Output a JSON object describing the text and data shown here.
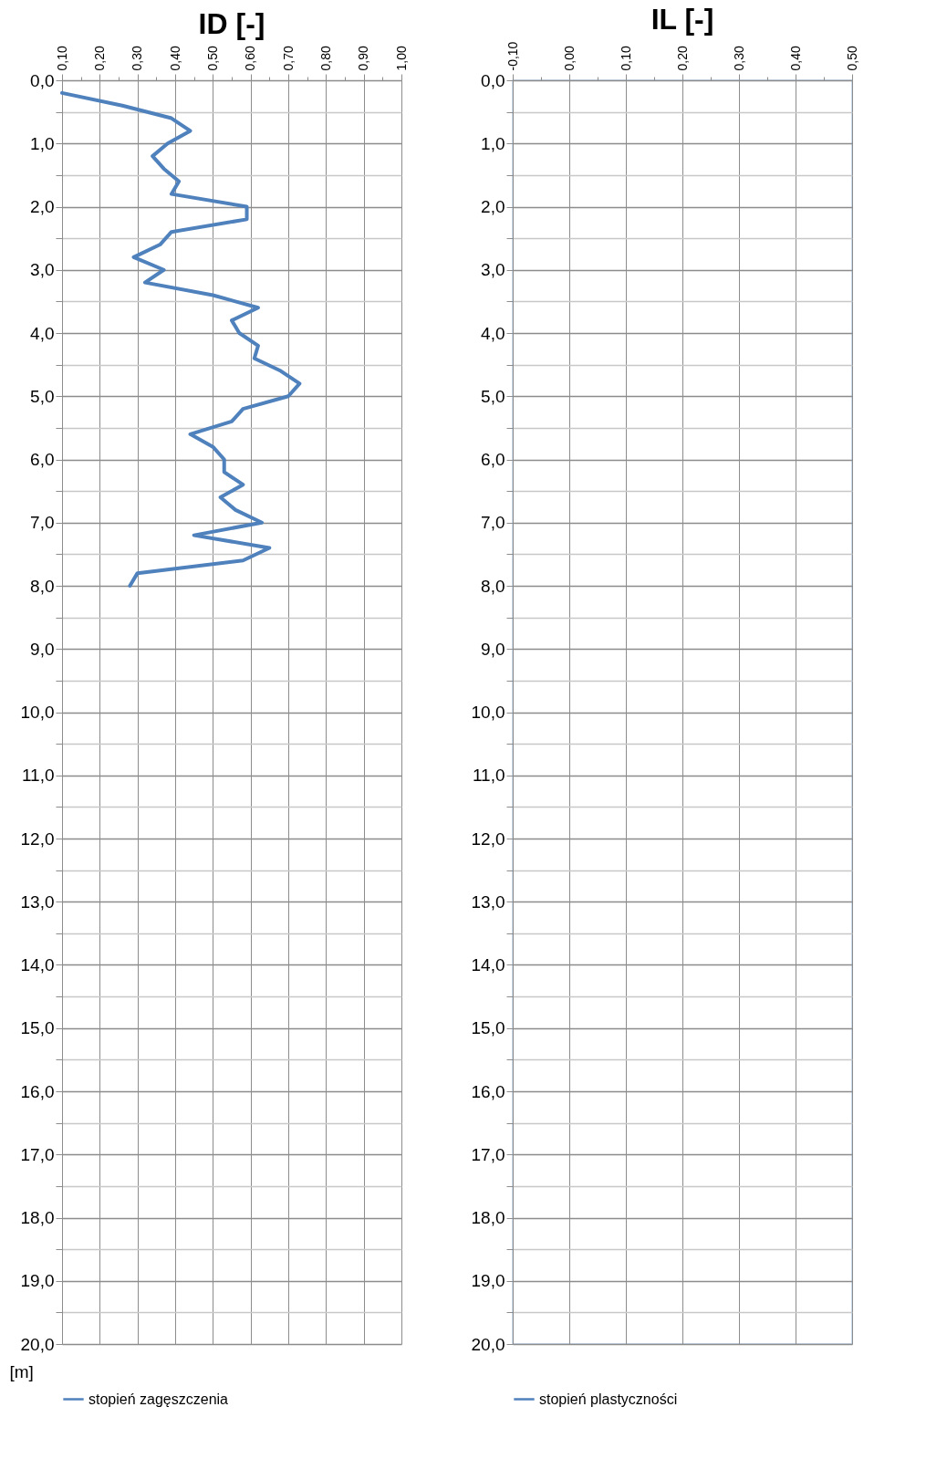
{
  "chart_data": [
    {
      "type": "line",
      "title": "ID [-]",
      "ylabel": "[m]",
      "xlim": [
        0.1,
        1.0
      ],
      "xticks": [
        {
          "value": 0.1,
          "label": "0,10"
        },
        {
          "value": 0.15,
          "label": null
        },
        {
          "value": 0.2,
          "label": "0,20"
        },
        {
          "value": 0.25,
          "label": null
        },
        {
          "value": 0.3,
          "label": "0,30"
        },
        {
          "value": 0.35,
          "label": null
        },
        {
          "value": 0.4,
          "label": "0,40"
        },
        {
          "value": 0.45,
          "label": null
        },
        {
          "value": 0.5,
          "label": "0,50"
        },
        {
          "value": 0.55,
          "label": null
        },
        {
          "value": 0.6,
          "label": "0,60"
        },
        {
          "value": 0.65,
          "label": null
        },
        {
          "value": 0.7,
          "label": "0,70"
        },
        {
          "value": 0.75,
          "label": null
        },
        {
          "value": 0.8,
          "label": "0,80"
        },
        {
          "value": 0.85,
          "label": null
        },
        {
          "value": 0.9,
          "label": "0,90"
        },
        {
          "value": 0.95,
          "label": null
        },
        {
          "value": 1.0,
          "label": "1,00"
        }
      ],
      "ylim": [
        20,
        0
      ],
      "yticks": [
        {
          "value": 0,
          "label": "0,0"
        },
        {
          "value": 0.5,
          "label": null
        },
        {
          "value": 1,
          "label": "1,0"
        },
        {
          "value": 1.5,
          "label": null
        },
        {
          "value": 2,
          "label": "2,0"
        },
        {
          "value": 2.5,
          "label": null
        },
        {
          "value": 3,
          "label": "3,0"
        },
        {
          "value": 3.5,
          "label": null
        },
        {
          "value": 4,
          "label": "4,0"
        },
        {
          "value": 4.5,
          "label": null
        },
        {
          "value": 5,
          "label": "5,0"
        },
        {
          "value": 5.5,
          "label": null
        },
        {
          "value": 6,
          "label": "6,0"
        },
        {
          "value": 6.5,
          "label": null
        },
        {
          "value": 7,
          "label": "7,0"
        },
        {
          "value": 7.5,
          "label": null
        },
        {
          "value": 8,
          "label": "8,0"
        },
        {
          "value": 8.5,
          "label": null
        },
        {
          "value": 9,
          "label": "9,0"
        },
        {
          "value": 9.5,
          "label": null
        },
        {
          "value": 10,
          "label": "10,0"
        },
        {
          "value": 10.5,
          "label": null
        },
        {
          "value": 11,
          "label": "11,0"
        },
        {
          "value": 11.5,
          "label": null
        },
        {
          "value": 12,
          "label": "12,0"
        },
        {
          "value": 12.5,
          "label": null
        },
        {
          "value": 13,
          "label": "13,0"
        },
        {
          "value": 13.5,
          "label": null
        },
        {
          "value": 14,
          "label": "14,0"
        },
        {
          "value": 14.5,
          "label": null
        },
        {
          "value": 15,
          "label": "15,0"
        },
        {
          "value": 15.5,
          "label": null
        },
        {
          "value": 16,
          "label": "16,0"
        },
        {
          "value": 16.5,
          "label": null
        },
        {
          "value": 17,
          "label": "17,0"
        },
        {
          "value": 17.5,
          "label": null
        },
        {
          "value": 18,
          "label": "18,0"
        },
        {
          "value": 18.5,
          "label": null
        },
        {
          "value": 19,
          "label": "19,0"
        },
        {
          "value": 19.5,
          "label": null
        },
        {
          "value": 20,
          "label": "20,0"
        }
      ],
      "grid": true,
      "legend": "bottom",
      "series": [
        {
          "name": "stopień zagęszczenia",
          "color": "#4f81bd",
          "x": [
            0.1,
            0.26,
            0.39,
            0.44,
            0.38,
            0.34,
            0.37,
            0.41,
            0.39,
            0.59,
            0.59,
            0.39,
            0.36,
            0.29,
            0.37,
            0.32,
            0.5,
            0.62,
            0.55,
            0.57,
            0.62,
            0.61,
            0.68,
            0.73,
            0.7,
            0.58,
            0.55,
            0.44,
            0.5,
            0.53,
            0.53,
            0.58,
            0.52,
            0.56,
            0.63,
            0.45,
            0.65,
            0.58,
            0.3,
            0.28
          ],
          "values": [
            0.2,
            0.4,
            0.6,
            0.8,
            1.0,
            1.2,
            1.4,
            1.6,
            1.8,
            2.0,
            2.2,
            2.4,
            2.6,
            2.8,
            3.0,
            3.2,
            3.4,
            3.6,
            3.8,
            4.0,
            4.2,
            4.4,
            4.6,
            4.8,
            5.0,
            5.2,
            5.4,
            5.6,
            5.8,
            6.0,
            6.2,
            6.4,
            6.6,
            6.8,
            7.0,
            7.2,
            7.4,
            7.6,
            7.8,
            8.0
          ]
        }
      ]
    },
    {
      "type": "line",
      "title": "IL [-]",
      "xlim": [
        -0.1,
        0.5
      ],
      "xticks": [
        {
          "value": -0.1,
          "label": "-0,10"
        },
        {
          "value": -0.05,
          "label": null
        },
        {
          "value": 0.0,
          "label": "0,00"
        },
        {
          "value": 0.05,
          "label": null
        },
        {
          "value": 0.1,
          "label": "0,10"
        },
        {
          "value": 0.15,
          "label": null
        },
        {
          "value": 0.2,
          "label": "0,20"
        },
        {
          "value": 0.25,
          "label": null
        },
        {
          "value": 0.3,
          "label": "0,30"
        },
        {
          "value": 0.35,
          "label": null
        },
        {
          "value": 0.4,
          "label": "0,40"
        },
        {
          "value": 0.45,
          "label": null
        },
        {
          "value": 0.5,
          "label": "0,50"
        }
      ],
      "ylim": [
        20,
        0
      ],
      "yticks": [
        {
          "value": 0,
          "label": "0,0"
        },
        {
          "value": 0.5,
          "label": null
        },
        {
          "value": 1,
          "label": "1,0"
        },
        {
          "value": 1.5,
          "label": null
        },
        {
          "value": 2,
          "label": "2,0"
        },
        {
          "value": 2.5,
          "label": null
        },
        {
          "value": 3,
          "label": "3,0"
        },
        {
          "value": 3.5,
          "label": null
        },
        {
          "value": 4,
          "label": "4,0"
        },
        {
          "value": 4.5,
          "label": null
        },
        {
          "value": 5,
          "label": "5,0"
        },
        {
          "value": 5.5,
          "label": null
        },
        {
          "value": 6,
          "label": "6,0"
        },
        {
          "value": 6.5,
          "label": null
        },
        {
          "value": 7,
          "label": "7,0"
        },
        {
          "value": 7.5,
          "label": null
        },
        {
          "value": 8,
          "label": "8,0"
        },
        {
          "value": 8.5,
          "label": null
        },
        {
          "value": 9,
          "label": "9,0"
        },
        {
          "value": 9.5,
          "label": null
        },
        {
          "value": 10,
          "label": "10,0"
        },
        {
          "value": 10.5,
          "label": null
        },
        {
          "value": 11,
          "label": "11,0"
        },
        {
          "value": 11.5,
          "label": null
        },
        {
          "value": 12,
          "label": "12,0"
        },
        {
          "value": 12.5,
          "label": null
        },
        {
          "value": 13,
          "label": "13,0"
        },
        {
          "value": 13.5,
          "label": null
        },
        {
          "value": 14,
          "label": "14,0"
        },
        {
          "value": 14.5,
          "label": null
        },
        {
          "value": 15,
          "label": "15,0"
        },
        {
          "value": 15.5,
          "label": null
        },
        {
          "value": 16,
          "label": "16,0"
        },
        {
          "value": 16.5,
          "label": null
        },
        {
          "value": 17,
          "label": "17,0"
        },
        {
          "value": 17.5,
          "label": null
        },
        {
          "value": 18,
          "label": "18,0"
        },
        {
          "value": 18.5,
          "label": null
        },
        {
          "value": 19,
          "label": "19,0"
        },
        {
          "value": 19.5,
          "label": null
        },
        {
          "value": 20,
          "label": "20,0"
        }
      ],
      "grid": true,
      "legend": "bottom",
      "series": [
        {
          "name": "stopień plastyczności",
          "color": "#4f81bd",
          "x": [
            null
          ],
          "values": [
            null
          ]
        }
      ]
    }
  ]
}
